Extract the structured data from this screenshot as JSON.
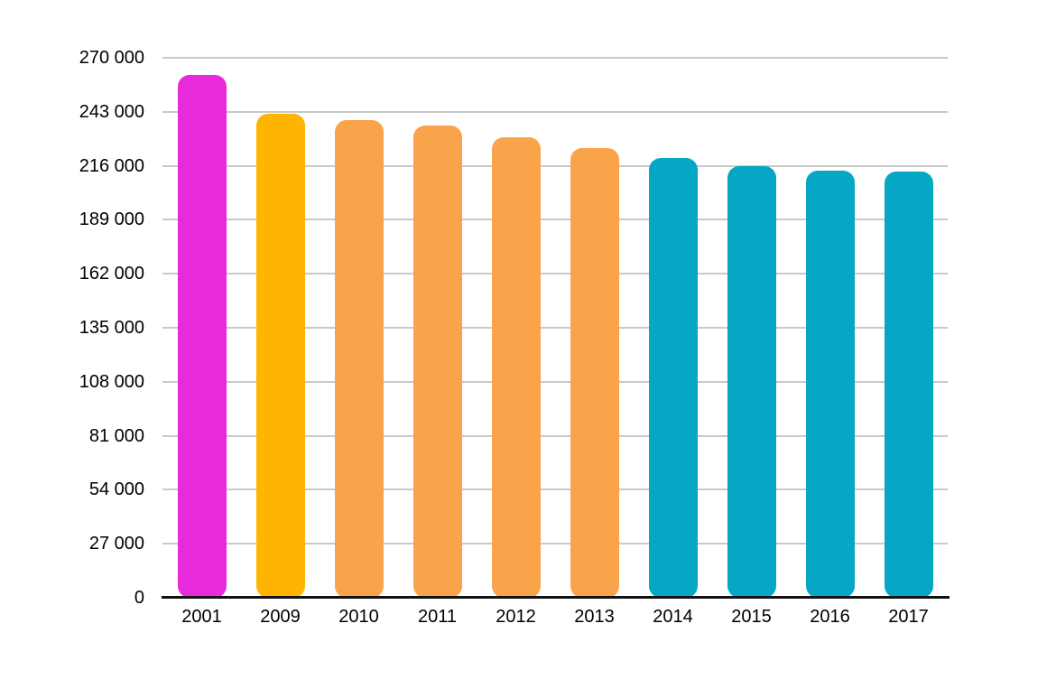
{
  "chart_data": {
    "type": "bar",
    "title": "",
    "xlabel": "",
    "ylabel": "",
    "categories": [
      "2001",
      "2009",
      "2010",
      "2011",
      "2012",
      "2013",
      "2014",
      "2015",
      "2016",
      "2017"
    ],
    "values": [
      261500,
      242000,
      239000,
      236000,
      230500,
      225000,
      220000,
      216000,
      213500,
      213000
    ],
    "bar_colors": [
      "#E82ADD",
      "#FFB401",
      "#F9A44B",
      "#F9A44B",
      "#F9A44B",
      "#F9A44B",
      "#06A7C4",
      "#06A7C4",
      "#06A7C4",
      "#06A7C4"
    ],
    "ylim": [
      0,
      270000
    ],
    "y_ticks": [
      0,
      27000,
      54000,
      81000,
      108000,
      135000,
      162000,
      189000,
      216000,
      243000,
      270000
    ],
    "y_tick_labels": [
      "0",
      "27 000",
      "54 000",
      "81 000",
      "108 000",
      "135 000",
      "162 000",
      "189 000",
      "216 000",
      "243 000",
      "270 000"
    ],
    "grid": "horizontal",
    "legend": "none"
  },
  "colors": {
    "background": "#FFFFFF",
    "gridline": "#C9C9C9",
    "axis_line": "#111111",
    "tick_text": "#000000"
  }
}
